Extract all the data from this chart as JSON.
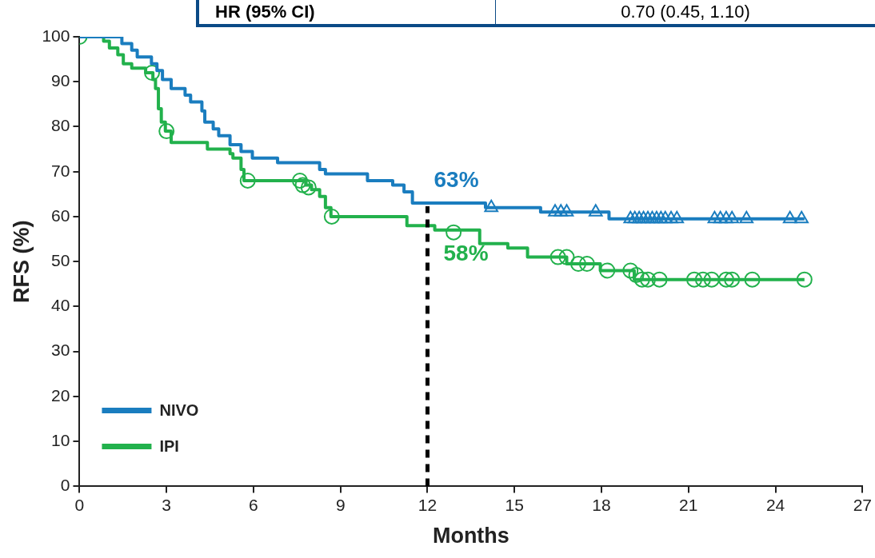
{
  "chart_data": {
    "type": "step",
    "xlabel": "Months",
    "ylabel": "RFS (%)",
    "xlim": [
      0,
      27
    ],
    "ylim": [
      0,
      100
    ],
    "xticks": [
      0,
      3,
      6,
      9,
      12,
      15,
      18,
      21,
      24,
      27
    ],
    "yticks": [
      0,
      10,
      20,
      30,
      40,
      50,
      60,
      70,
      80,
      90,
      100
    ],
    "grid": false,
    "legend": "bottom left",
    "line_style": "solid",
    "series": [
      {
        "name": "NIVO",
        "color": "#1a7dbf",
        "marker": "none",
        "x": [
          0,
          1.46,
          1.8,
          1.99,
          2.48,
          2.67,
          2.86,
          3.16,
          3.64,
          3.83,
          4.22,
          4.32,
          4.61,
          4.8,
          5.19,
          5.57,
          5.96,
          6.83,
          8.28,
          8.48,
          9.93,
          10.8,
          11.19,
          11.48,
          14.0,
          15.9,
          18.26,
          25
        ],
        "values": [
          100,
          98.5,
          97,
          95.5,
          94,
          92.5,
          90.5,
          88.5,
          87,
          85.5,
          83.5,
          81,
          79.5,
          78,
          76,
          74.5,
          73,
          72,
          70.5,
          69.5,
          68,
          67,
          65.5,
          63,
          62,
          61,
          59.5,
          59.5
        ]
      },
      {
        "name": "IPI",
        "color": "#22b14c",
        "marker": "none",
        "x": [
          0,
          0.83,
          1.03,
          1.32,
          1.51,
          1.8,
          2.28,
          2.53,
          2.62,
          2.72,
          2.82,
          2.96,
          3.16,
          4.41,
          5.19,
          5.29,
          5.57,
          5.67,
          7.8,
          8.0,
          8.28,
          8.48,
          8.67,
          11.29,
          12.25,
          13.8,
          14.77,
          15.45,
          16.8,
          17.96,
          19.13,
          25
        ],
        "values": [
          100,
          99,
          97.5,
          96,
          94,
          93,
          92,
          90.5,
          88.5,
          84,
          81,
          79,
          76.5,
          75,
          74,
          73,
          70.5,
          68,
          67,
          66,
          64.5,
          62,
          60,
          58,
          57,
          54,
          53,
          51,
          49.5,
          48,
          46,
          46
        ]
      },
      {
        "type": "scatter",
        "color": "#1a7dbf",
        "marker": "triangle",
        "x": [
          14.2,
          16.4,
          16.6,
          16.8,
          17.8,
          19.0,
          19.15,
          19.3,
          19.45,
          19.6,
          19.75,
          19.9,
          20.05,
          20.2,
          20.4,
          20.6,
          21.9,
          22.1,
          22.3,
          22.5,
          23.0,
          24.5,
          24.9
        ],
        "values": [
          62,
          61,
          61,
          61,
          61,
          59.5,
          59.5,
          59.5,
          59.5,
          59.5,
          59.5,
          59.5,
          59.5,
          59.5,
          59.5,
          59.5,
          59.5,
          59.5,
          59.5,
          59.5,
          59.5,
          59.5,
          59.5
        ]
      },
      {
        "type": "scatter",
        "color": "#22b14c",
        "marker": "circle",
        "x": [
          0,
          2.5,
          3.0,
          5.8,
          7.6,
          7.7,
          7.9,
          8.7,
          12.9,
          16.5,
          16.8,
          17.2,
          17.5,
          18.2,
          19.0,
          19.2,
          19.4,
          19.6,
          20.0,
          21.2,
          21.5,
          21.8,
          22.3,
          22.5,
          23.2,
          25
        ],
        "values": [
          100,
          92,
          79,
          68,
          68,
          67,
          66.5,
          60,
          56.5,
          51,
          51,
          49.5,
          49.5,
          48,
          48,
          47,
          46,
          46,
          46,
          46,
          46,
          46,
          46,
          46,
          46,
          46
        ]
      }
    ],
    "ref_lines": [
      {
        "axis": "x",
        "value": 12,
        "color": "#000000",
        "line_style": "dashed"
      }
    ],
    "annotations": [
      {
        "text": "63%",
        "x": 12,
        "y": 63
      },
      {
        "text": "58%",
        "x": 12,
        "y": 58
      },
      "HR (95% CI)",
      "0.70 (0.45, 1.10)"
    ]
  }
}
